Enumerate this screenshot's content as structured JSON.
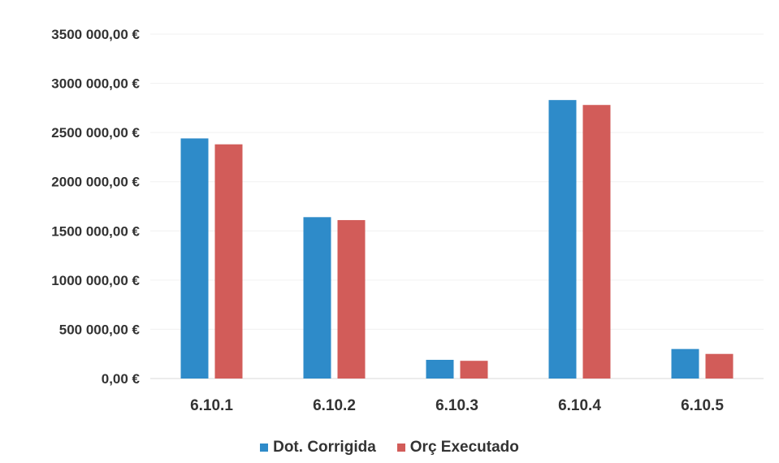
{
  "chart_data": {
    "type": "bar",
    "categories": [
      "6.10.1",
      "6.10.2",
      "6.10.3",
      "6.10.4",
      "6.10.5"
    ],
    "series": [
      {
        "name": "Dot. Corrigida",
        "color": "#2e8bc9",
        "values": [
          2440000,
          1640000,
          190000,
          2830000,
          300000
        ]
      },
      {
        "name": "Orç Executado",
        "color": "#d25c59",
        "values": [
          2380000,
          1610000,
          180000,
          2780000,
          250000
        ]
      }
    ],
    "y_ticks": [
      0,
      500000,
      1000000,
      1500000,
      2000000,
      2500000,
      3000000,
      3500000
    ],
    "y_tick_labels": [
      "0,00 €",
      "500 000,00 €",
      "1000 000,00 €",
      "1500 000,00 €",
      "2000 000,00 €",
      "2500 000,00 €",
      "3000 000,00 €",
      "3500 000,00 €"
    ],
    "ylim": [
      0,
      3500000
    ],
    "grid": true,
    "legend_position": "bottom"
  }
}
